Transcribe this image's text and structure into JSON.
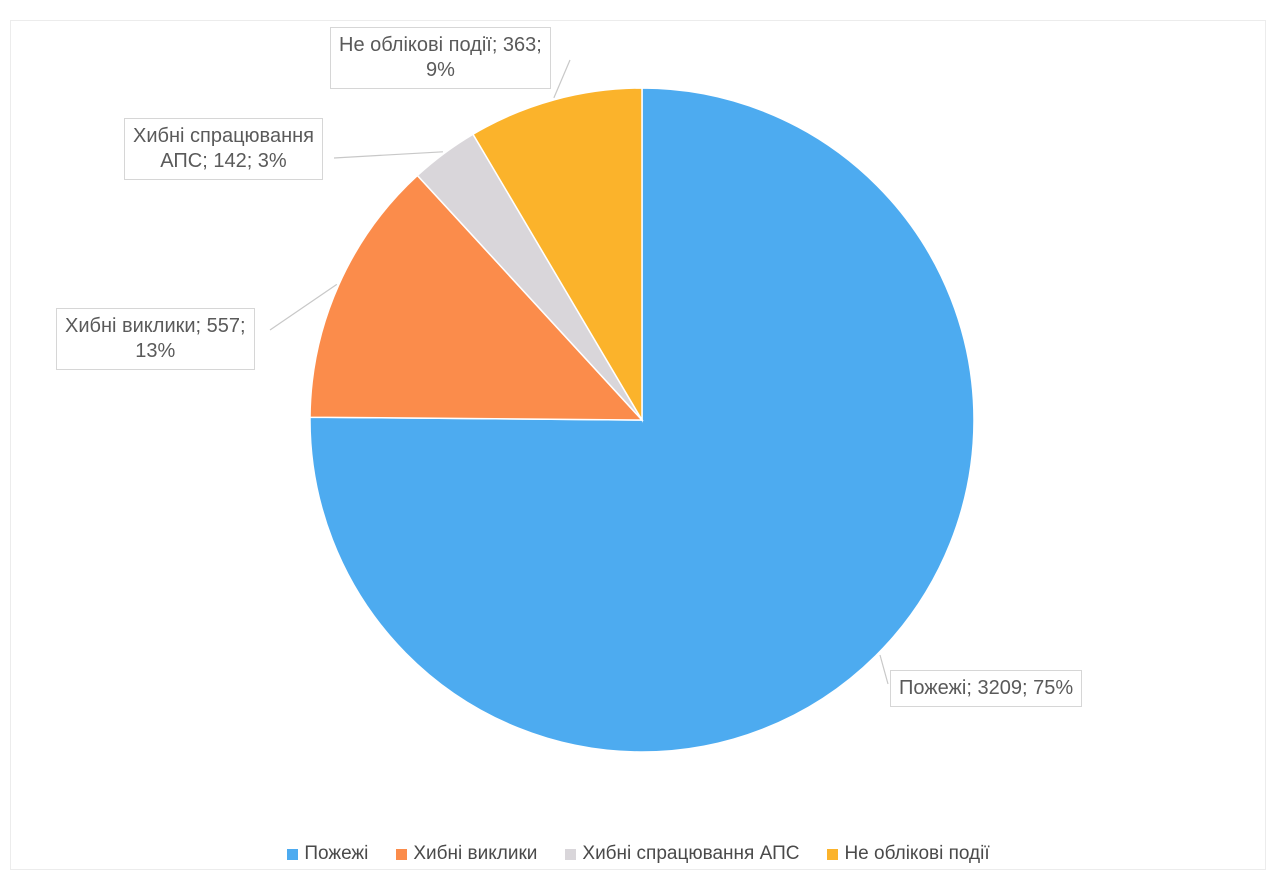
{
  "chart_data": {
    "type": "pie",
    "title": "",
    "legend_position": "bottom",
    "slices": [
      {
        "name": "Пожежі",
        "value": 3209,
        "percent": "75%",
        "label": "Пожежі; 3209; 75%",
        "label_lines": [
          "Пожежі; 3209; 75%"
        ],
        "color": "#4dabf0"
      },
      {
        "name": "Хибні виклики",
        "value": 557,
        "percent": "13%",
        "label": "Хибні виклики; 557; 13%",
        "label_lines": [
          "Хибні виклики; 557;",
          "13%"
        ],
        "color": "#fb8c4b"
      },
      {
        "name": "Хибні спрацювання АПС",
        "value": 142,
        "percent": "3%",
        "label": "Хибні спрацювання АПС; 142; 3%",
        "label_lines": [
          "Хибні спрацювання",
          "АПС; 142; 3%"
        ],
        "color": "#d9d6da"
      },
      {
        "name": "Не облікові події",
        "value": 363,
        "percent": "9%",
        "label": "Не облікові події; 363; 9%",
        "label_lines": [
          "Не облікові події; 363;",
          "9%"
        ],
        "color": "#fbb32b"
      }
    ]
  }
}
